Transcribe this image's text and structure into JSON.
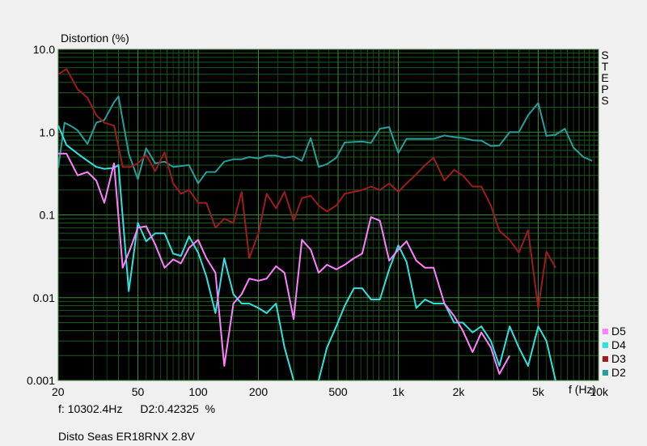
{
  "chart_data": {
    "type": "line",
    "title": "",
    "ylabel": "Distortion (%)",
    "xlabel": "f (Hz)",
    "x_scale": "log",
    "y_scale": "log",
    "xlim": [
      20,
      10000
    ],
    "ylim": [
      0.001,
      10
    ],
    "grid": true,
    "legend_position": "bottom-right",
    "x_ticks": [
      {
        "v": 20,
        "label": "20"
      },
      {
        "v": 50,
        "label": "50"
      },
      {
        "v": 100,
        "label": "100"
      },
      {
        "v": 200,
        "label": "200"
      },
      {
        "v": 500,
        "label": "500"
      },
      {
        "v": 1000,
        "label": "1k"
      },
      {
        "v": 2000,
        "label": "2k"
      },
      {
        "v": 5000,
        "label": "5k"
      },
      {
        "v": 10000,
        "label": "10k"
      }
    ],
    "y_ticks": [
      {
        "v": 10,
        "label": "10.0"
      },
      {
        "v": 1,
        "label": "1.0"
      },
      {
        "v": 0.1,
        "label": "0.1"
      },
      {
        "v": 0.01,
        "label": "0.01"
      },
      {
        "v": 0.001,
        "label": "0.001"
      }
    ],
    "series": [
      {
        "name": "D2",
        "color": "#2a9d9d",
        "points": [
          [
            20,
            0.37
          ],
          [
            21.5,
            1.3
          ],
          [
            23,
            1.2
          ],
          [
            25,
            1.05
          ],
          [
            28,
            0.72
          ],
          [
            31,
            1.3
          ],
          [
            34,
            1.4
          ],
          [
            38,
            2.3
          ],
          [
            40,
            2.7
          ],
          [
            45,
            0.55
          ],
          [
            50,
            0.27
          ],
          [
            55,
            0.64
          ],
          [
            61,
            0.42
          ],
          [
            68,
            0.44
          ],
          [
            75,
            0.38
          ],
          [
            82,
            0.39
          ],
          [
            90,
            0.4
          ],
          [
            100,
            0.24
          ],
          [
            110,
            0.33
          ],
          [
            122,
            0.33
          ],
          [
            135,
            0.44
          ],
          [
            150,
            0.47
          ],
          [
            165,
            0.47
          ],
          [
            180,
            0.5
          ],
          [
            200,
            0.48
          ],
          [
            220,
            0.52
          ],
          [
            245,
            0.52
          ],
          [
            270,
            0.49
          ],
          [
            300,
            0.51
          ],
          [
            330,
            0.45
          ],
          [
            365,
            0.85
          ],
          [
            400,
            0.38
          ],
          [
            440,
            0.41
          ],
          [
            490,
            0.49
          ],
          [
            540,
            0.75
          ],
          [
            600,
            0.76
          ],
          [
            660,
            0.77
          ],
          [
            730,
            0.74
          ],
          [
            810,
            1.1
          ],
          [
            900,
            1.15
          ],
          [
            1000,
            0.56
          ],
          [
            1100,
            0.83
          ],
          [
            1230,
            0.83
          ],
          [
            1360,
            0.83
          ],
          [
            1500,
            0.83
          ],
          [
            1700,
            0.91
          ],
          [
            1900,
            0.87
          ],
          [
            2100,
            0.85
          ],
          [
            2350,
            0.8
          ],
          [
            2600,
            0.79
          ],
          [
            2900,
            0.68
          ],
          [
            3200,
            0.69
          ],
          [
            3600,
            1.0
          ],
          [
            4000,
            1.0
          ],
          [
            4450,
            1.6
          ],
          [
            5000,
            2.25
          ],
          [
            5500,
            0.9
          ],
          [
            6100,
            0.93
          ],
          [
            6800,
            1.1
          ],
          [
            7500,
            0.65
          ],
          [
            8400,
            0.5
          ],
          [
            9300,
            0.45
          ]
        ]
      },
      {
        "name": "D3",
        "color": "#a01c1c",
        "points": [
          [
            20,
            5.0
          ],
          [
            22,
            5.8
          ],
          [
            25,
            3.3
          ],
          [
            28,
            2.6
          ],
          [
            31,
            1.6
          ],
          [
            34,
            1.3
          ],
          [
            38,
            1.2
          ],
          [
            42,
            0.38
          ],
          [
            46,
            0.38
          ],
          [
            50,
            0.42
          ],
          [
            55,
            0.53
          ],
          [
            61,
            0.34
          ],
          [
            68,
            0.57
          ],
          [
            75,
            0.24
          ],
          [
            82,
            0.18
          ],
          [
            90,
            0.2
          ],
          [
            100,
            0.14
          ],
          [
            110,
            0.14
          ],
          [
            122,
            0.07
          ],
          [
            135,
            0.09
          ],
          [
            150,
            0.08
          ],
          [
            165,
            0.19
          ],
          [
            180,
            0.03
          ],
          [
            200,
            0.06
          ],
          [
            220,
            0.18
          ],
          [
            245,
            0.12
          ],
          [
            270,
            0.19
          ],
          [
            300,
            0.085
          ],
          [
            330,
            0.16
          ],
          [
            365,
            0.17
          ],
          [
            400,
            0.13
          ],
          [
            440,
            0.11
          ],
          [
            490,
            0.13
          ],
          [
            540,
            0.18
          ],
          [
            600,
            0.19
          ],
          [
            660,
            0.2
          ],
          [
            730,
            0.22
          ],
          [
            810,
            0.2
          ],
          [
            900,
            0.24
          ],
          [
            1000,
            0.19
          ],
          [
            1100,
            0.24
          ],
          [
            1230,
            0.31
          ],
          [
            1360,
            0.4
          ],
          [
            1500,
            0.49
          ],
          [
            1700,
            0.26
          ],
          [
            1900,
            0.35
          ],
          [
            2100,
            0.3
          ],
          [
            2350,
            0.22
          ],
          [
            2600,
            0.22
          ],
          [
            2900,
            0.13
          ],
          [
            3200,
            0.064
          ],
          [
            3600,
            0.05
          ],
          [
            4000,
            0.035
          ],
          [
            4450,
            0.065
          ],
          [
            5000,
            0.0075
          ],
          [
            5500,
            0.036
          ],
          [
            6100,
            0.023
          ]
        ]
      },
      {
        "name": "D4",
        "color": "#33e0e0",
        "points": [
          [
            20,
            1.2
          ],
          [
            22,
            0.7
          ],
          [
            25,
            0.55
          ],
          [
            28,
            0.45
          ],
          [
            31,
            0.38
          ],
          [
            34,
            0.36
          ],
          [
            38,
            0.37
          ],
          [
            40,
            0.4
          ],
          [
            45,
            0.012
          ],
          [
            50,
            0.08
          ],
          [
            55,
            0.048
          ],
          [
            61,
            0.06
          ],
          [
            68,
            0.06
          ],
          [
            75,
            0.034
          ],
          [
            82,
            0.032
          ],
          [
            90,
            0.055
          ],
          [
            100,
            0.035
          ],
          [
            110,
            0.018
          ],
          [
            122,
            0.0065
          ],
          [
            135,
            0.03
          ],
          [
            150,
            0.011
          ],
          [
            165,
            0.0085
          ],
          [
            180,
            0.0085
          ],
          [
            200,
            0.0075
          ],
          [
            220,
            0.0065
          ],
          [
            245,
            0.0085
          ],
          [
            270,
            0.0025
          ],
          [
            300,
            0.001
          ],
          [
            330,
            0.0006
          ],
          [
            365,
            0.0008
          ],
          [
            400,
            0.001
          ],
          [
            440,
            0.0025
          ],
          [
            490,
            0.0045
          ],
          [
            540,
            0.008
          ],
          [
            600,
            0.013
          ],
          [
            660,
            0.013
          ],
          [
            730,
            0.0095
          ],
          [
            810,
            0.0095
          ],
          [
            900,
            0.022
          ],
          [
            1000,
            0.043
          ],
          [
            1100,
            0.027
          ],
          [
            1230,
            0.0075
          ],
          [
            1360,
            0.0095
          ],
          [
            1500,
            0.0085
          ],
          [
            1700,
            0.0085
          ],
          [
            1900,
            0.005
          ],
          [
            2100,
            0.005
          ],
          [
            2350,
            0.0038
          ],
          [
            2600,
            0.0045
          ],
          [
            2900,
            0.003
          ],
          [
            3200,
            0.0015
          ],
          [
            3600,
            0.0045
          ],
          [
            4000,
            0.0025
          ],
          [
            4450,
            0.0015
          ],
          [
            5000,
            0.0045
          ],
          [
            5500,
            0.003
          ],
          [
            6100,
            0.001
          ]
        ]
      },
      {
        "name": "D5",
        "color": "#ff80ff",
        "points": [
          [
            20,
            0.55
          ],
          [
            22,
            0.55
          ],
          [
            25,
            0.3
          ],
          [
            28,
            0.33
          ],
          [
            31,
            0.26
          ],
          [
            34,
            0.14
          ],
          [
            38,
            0.42
          ],
          [
            42,
            0.023
          ],
          [
            46,
            0.04
          ],
          [
            50,
            0.07
          ],
          [
            55,
            0.073
          ],
          [
            61,
            0.044
          ],
          [
            68,
            0.023
          ],
          [
            75,
            0.029
          ],
          [
            82,
            0.026
          ],
          [
            90,
            0.04
          ],
          [
            100,
            0.05
          ],
          [
            110,
            0.03
          ],
          [
            122,
            0.02
          ],
          [
            135,
            0.0015
          ],
          [
            150,
            0.0085
          ],
          [
            165,
            0.011
          ],
          [
            180,
            0.017
          ],
          [
            200,
            0.016
          ],
          [
            220,
            0.017
          ],
          [
            245,
            0.024
          ],
          [
            270,
            0.02
          ],
          [
            300,
            0.0055
          ],
          [
            330,
            0.05
          ],
          [
            365,
            0.038
          ],
          [
            400,
            0.02
          ],
          [
            440,
            0.025
          ],
          [
            490,
            0.022
          ],
          [
            540,
            0.025
          ],
          [
            600,
            0.03
          ],
          [
            660,
            0.034
          ],
          [
            730,
            0.094
          ],
          [
            810,
            0.085
          ],
          [
            900,
            0.028
          ],
          [
            1000,
            0.038
          ],
          [
            1100,
            0.048
          ],
          [
            1230,
            0.028
          ],
          [
            1360,
            0.023
          ],
          [
            1500,
            0.023
          ],
          [
            1700,
            0.0085
          ],
          [
            1900,
            0.006
          ],
          [
            2100,
            0.004
          ],
          [
            2350,
            0.0022
          ],
          [
            2600,
            0.0038
          ],
          [
            2900,
            0.0025
          ],
          [
            3200,
            0.0012
          ],
          [
            3600,
            0.002
          ]
        ]
      }
    ],
    "legend": [
      "D5",
      "D4",
      "D3",
      "D2"
    ]
  },
  "readout": {
    "frequency": "f: 10302.4Hz",
    "value": "D2:0.42325  %"
  },
  "side_label": [
    "S",
    "T",
    "E",
    "P",
    "S"
  ],
  "caption": "Disto Seas ER18RNX 2.8V"
}
